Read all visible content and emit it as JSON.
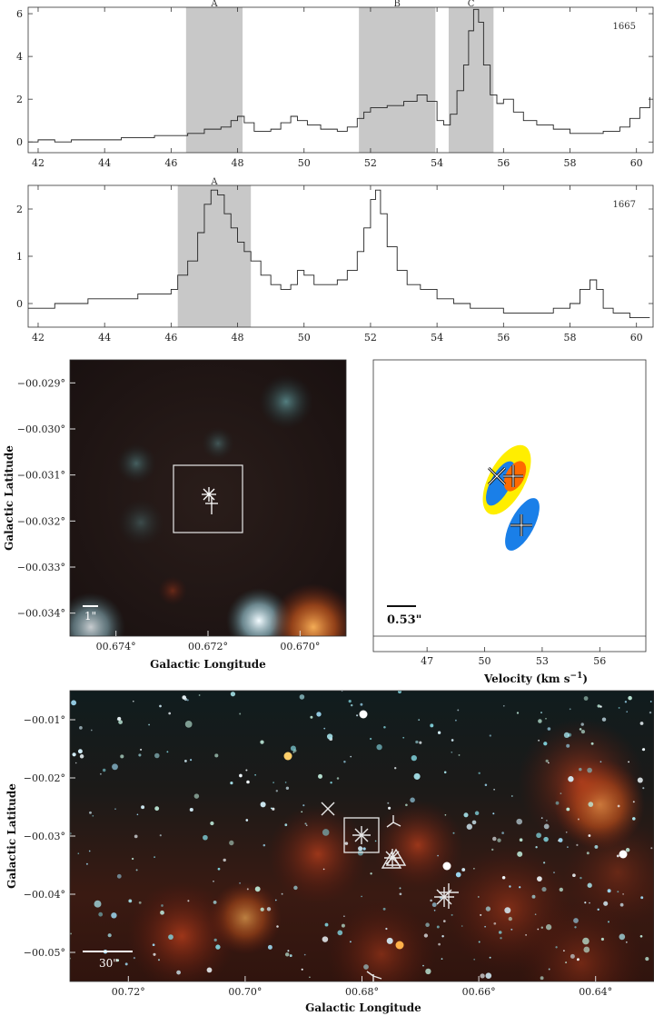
{
  "chart_data": [
    {
      "id": "spec1665",
      "type": "line",
      "label": "1665",
      "xlim": [
        41.7,
        60.5
      ],
      "ylim": [
        -0.5,
        6.3
      ],
      "xticks": [
        42,
        44,
        46,
        48,
        50,
        52,
        54,
        56,
        58,
        60
      ],
      "yticks": [
        0,
        2,
        4,
        6
      ],
      "bands": [
        {
          "label": "A",
          "x0": 46.45,
          "x1": 48.15
        },
        {
          "label": "B",
          "x0": 51.65,
          "x1": 53.95
        },
        {
          "label": "C",
          "x0": 54.35,
          "x1": 55.7
        }
      ],
      "x": [
        41.7,
        42.0,
        42.5,
        43.0,
        43.5,
        44.0,
        44.5,
        45.0,
        45.5,
        46.0,
        46.5,
        47.0,
        47.5,
        47.8,
        48.0,
        48.2,
        48.5,
        49.0,
        49.3,
        49.6,
        49.8,
        50.1,
        50.5,
        51.0,
        51.3,
        51.6,
        51.8,
        52.0,
        52.5,
        53.0,
        53.4,
        53.7,
        54.0,
        54.2,
        54.4,
        54.6,
        54.8,
        54.95,
        55.1,
        55.25,
        55.4,
        55.6,
        55.8,
        56.0,
        56.3,
        56.6,
        57.0,
        57.5,
        58.0,
        58.5,
        59.0,
        59.5,
        59.8,
        60.1,
        60.4
      ],
      "y": [
        0.0,
        0.1,
        0.0,
        0.1,
        0.1,
        0.1,
        0.2,
        0.2,
        0.3,
        0.3,
        0.4,
        0.6,
        0.7,
        1.0,
        1.2,
        0.9,
        0.5,
        0.6,
        0.9,
        1.2,
        1.0,
        0.8,
        0.6,
        0.5,
        0.7,
        1.1,
        1.4,
        1.6,
        1.7,
        1.9,
        2.2,
        1.9,
        1.0,
        0.8,
        1.3,
        2.4,
        3.6,
        5.2,
        6.2,
        5.6,
        3.6,
        2.2,
        1.8,
        2.0,
        1.4,
        1.0,
        0.8,
        0.6,
        0.4,
        0.4,
        0.5,
        0.7,
        1.1,
        1.6,
        2.1
      ]
    },
    {
      "id": "spec1667",
      "type": "line",
      "label": "1667",
      "xlim": [
        41.7,
        60.5
      ],
      "ylim": [
        -0.5,
        2.5
      ],
      "xticks": [
        42,
        44,
        46,
        48,
        50,
        52,
        54,
        56,
        58,
        60
      ],
      "yticks": [
        0,
        1,
        2
      ],
      "bands": [
        {
          "label": "A",
          "x0": 46.2,
          "x1": 48.4
        }
      ],
      "x": [
        41.7,
        42.0,
        42.5,
        43.0,
        43.5,
        44.0,
        44.5,
        45.0,
        45.5,
        46.0,
        46.2,
        46.5,
        46.8,
        47.0,
        47.2,
        47.4,
        47.6,
        47.8,
        48.0,
        48.2,
        48.4,
        48.7,
        49.0,
        49.3,
        49.6,
        49.8,
        50.0,
        50.3,
        50.6,
        51.0,
        51.3,
        51.6,
        51.8,
        52.0,
        52.15,
        52.3,
        52.5,
        52.8,
        53.1,
        53.5,
        54.0,
        54.5,
        55.0,
        55.5,
        56.0,
        56.5,
        57.0,
        57.5,
        58.0,
        58.3,
        58.6,
        58.8,
        59.0,
        59.3,
        59.8,
        60.4
      ],
      "y": [
        -0.1,
        -0.1,
        0.0,
        0.0,
        0.1,
        0.1,
        0.1,
        0.2,
        0.2,
        0.3,
        0.6,
        0.9,
        1.5,
        2.1,
        2.4,
        2.3,
        1.9,
        1.6,
        1.3,
        1.1,
        0.9,
        0.6,
        0.4,
        0.3,
        0.4,
        0.7,
        0.6,
        0.4,
        0.4,
        0.5,
        0.7,
        1.1,
        1.6,
        2.2,
        2.4,
        1.9,
        1.2,
        0.7,
        0.4,
        0.3,
        0.1,
        0.0,
        -0.1,
        -0.1,
        -0.2,
        -0.2,
        -0.2,
        -0.1,
        0.0,
        0.3,
        0.5,
        0.3,
        -0.1,
        -0.2,
        -0.3,
        -0.3
      ]
    },
    {
      "id": "zoom-image",
      "type": "image",
      "xlabel": "Galactic Longitude",
      "ylabel": "Galactic Latitude",
      "xticks": [
        "00.674°",
        "00.672°",
        "00.670°"
      ],
      "yticks": [
        "−00.029°",
        "−00.030°",
        "−00.031°",
        "−00.032°",
        "−00.033°",
        "−00.034°"
      ],
      "scalebar": "1\""
    },
    {
      "id": "velocity-panel",
      "type": "scatter",
      "xlabel": "Velocity (km s",
      "xlabel_sup": "−1",
      "xlabel_end": ")",
      "xticks": [
        47,
        50,
        53,
        56
      ],
      "xlim": [
        44.2,
        58.4
      ],
      "scalebar": "0.53\"",
      "colors": {
        "yellow": "#ffee00",
        "orange": "#ff6a00",
        "blue": "#1a7fe8"
      }
    },
    {
      "id": "wide-image",
      "type": "image",
      "xlabel": "Galactic Longitude",
      "ylabel": "Galactic Latitude",
      "xticks": [
        "00.72°",
        "00.70°",
        "00.68°",
        "00.66°",
        "00.64°"
      ],
      "yticks": [
        "−00.01°",
        "−00.02°",
        "−00.03°",
        "−00.04°",
        "−00.05°"
      ],
      "scalebar": "30\""
    }
  ]
}
